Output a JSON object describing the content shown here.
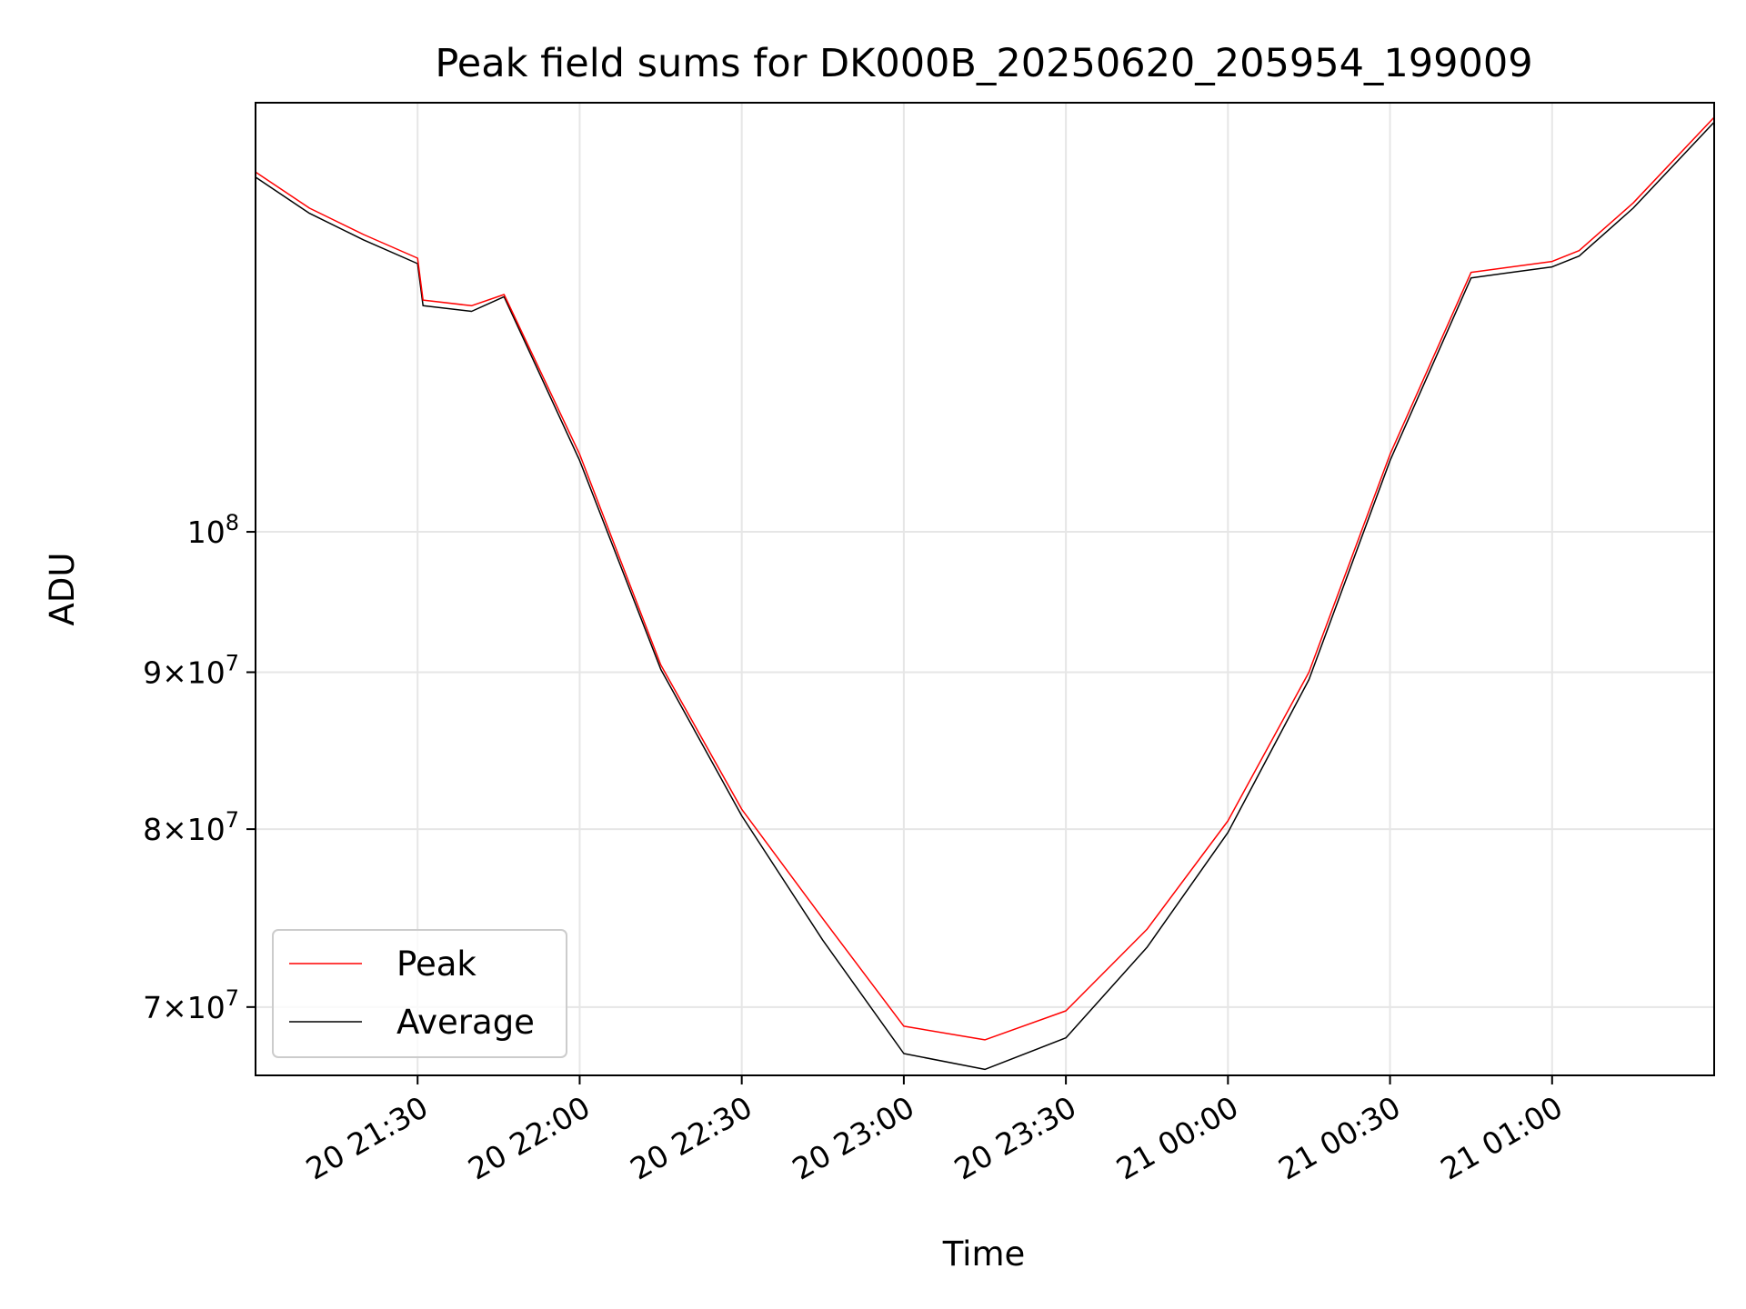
{
  "chart_data": {
    "type": "line",
    "title": "Peak field sums for DK000B_20250620_205954_199009",
    "xlabel": "Time",
    "ylabel": "ADU",
    "y_scale": "log",
    "ylim": [
      66500000,
      138000000
    ],
    "xlim": [
      "2025-06-20 21:00",
      "2025-06-21 01:30"
    ],
    "grid": true,
    "legend_position": "lower-left",
    "x_ticks": [
      {
        "value": "2025-06-20 21:30",
        "label": "20 21:30"
      },
      {
        "value": "2025-06-20 22:00",
        "label": "20 22:00"
      },
      {
        "value": "2025-06-20 22:30",
        "label": "20 22:30"
      },
      {
        "value": "2025-06-20 23:00",
        "label": "20 23:00"
      },
      {
        "value": "2025-06-20 23:30",
        "label": "20 23:30"
      },
      {
        "value": "2025-06-21 00:00",
        "label": "21 00:00"
      },
      {
        "value": "2025-06-21 00:30",
        "label": "21 00:30"
      },
      {
        "value": "2025-06-21 01:00",
        "label": "21 01:00"
      }
    ],
    "y_ticks": [
      {
        "value": 70000000,
        "base": "7",
        "exp": "7",
        "times": true
      },
      {
        "value": 80000000,
        "base": "8",
        "exp": "7",
        "times": true
      },
      {
        "value": 90000000,
        "base": "9",
        "exp": "7",
        "times": true
      },
      {
        "value": 100000000,
        "base": "10",
        "exp": "8",
        "times": false
      }
    ],
    "series": [
      {
        "name": "Peak",
        "color": "#ff0000",
        "x": [
          "2025-06-20 21:00",
          "2025-06-20 21:10",
          "2025-06-20 21:20",
          "2025-06-20 21:30",
          "2025-06-20 21:31",
          "2025-06-20 21:40",
          "2025-06-20 21:46",
          "2025-06-20 22:00",
          "2025-06-20 22:15",
          "2025-06-20 22:30",
          "2025-06-20 22:45",
          "2025-06-20 23:00",
          "2025-06-20 23:15",
          "2025-06-20 23:30",
          "2025-06-20 23:45",
          "2025-06-21 00:00",
          "2025-06-21 00:15",
          "2025-06-21 00:30",
          "2025-06-21 00:45",
          "2025-06-21 01:00",
          "2025-06-21 01:05",
          "2025-06-21 01:15",
          "2025-06-21 01:30"
        ],
        "values": [
          131000000,
          127500000,
          125000000,
          122800000,
          119000000,
          118500000,
          119500000,
          106000000,
          90500000,
          81200000,
          74800000,
          69000000,
          68300000,
          69800000,
          74200000,
          80500000,
          90000000,
          106000000,
          121500000,
          122500000,
          123500000,
          128000000,
          136500000
        ]
      },
      {
        "name": "Average",
        "color": "#000000",
        "x": [
          "2025-06-20 21:00",
          "2025-06-20 21:10",
          "2025-06-20 21:20",
          "2025-06-20 21:30",
          "2025-06-20 21:31",
          "2025-06-20 21:40",
          "2025-06-20 21:46",
          "2025-06-20 22:00",
          "2025-06-20 22:15",
          "2025-06-20 22:30",
          "2025-06-20 22:45",
          "2025-06-20 23:00",
          "2025-06-20 23:15",
          "2025-06-20 23:30",
          "2025-06-20 23:45",
          "2025-06-21 00:00",
          "2025-06-21 00:15",
          "2025-06-21 00:30",
          "2025-06-21 00:45",
          "2025-06-21 01:00",
          "2025-06-21 01:05",
          "2025-06-21 01:15",
          "2025-06-21 01:30"
        ],
        "values": [
          130500000,
          127000000,
          124500000,
          122300000,
          118500000,
          118000000,
          119300000,
          105500000,
          90200000,
          80800000,
          73600000,
          67600000,
          66800000,
          68400000,
          73200000,
          79800000,
          89500000,
          105500000,
          121000000,
          122000000,
          123000000,
          127500000,
          136000000
        ]
      }
    ]
  }
}
